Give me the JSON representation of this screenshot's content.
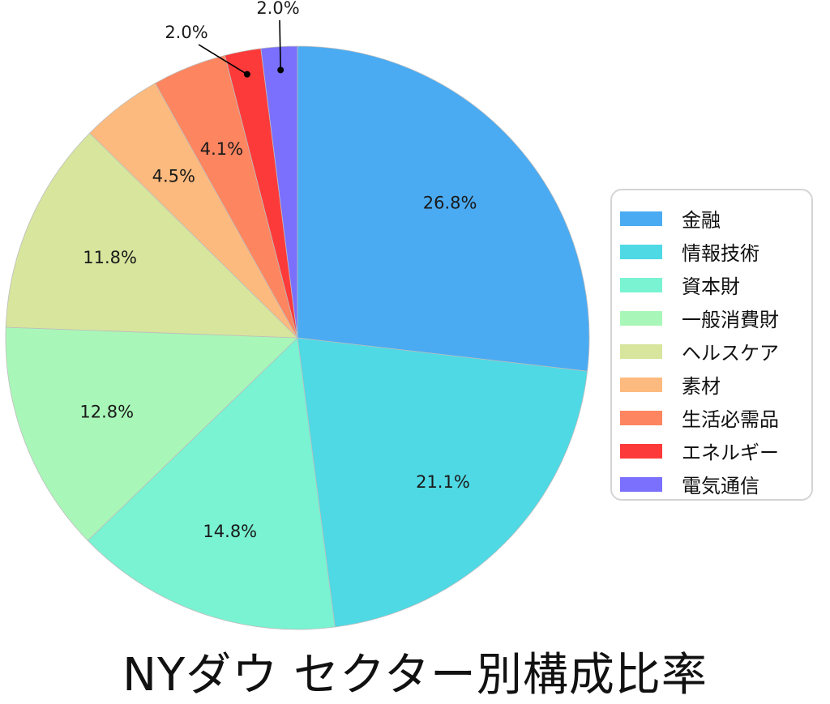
{
  "chart_data": {
    "type": "pie",
    "title": "NYダウ セクター別構成比率",
    "start_angle_deg": 90,
    "direction": "clockwise",
    "categories": [
      "金融",
      "情報技術",
      "資本財",
      "一般消費財",
      "ヘルスケア",
      "素材",
      "生活必需品",
      "エネルギー",
      "電気通信"
    ],
    "values": [
      26.8,
      21.1,
      14.8,
      12.8,
      11.8,
      4.5,
      4.1,
      2.0,
      2.0
    ],
    "labels": [
      "26.8%",
      "21.1%",
      "14.8%",
      "12.8%",
      "11.8%",
      "4.5%",
      "4.1%",
      "2.0%",
      "2.0%"
    ],
    "colors": [
      "#4aabf2",
      "#4fd9e4",
      "#79f3d2",
      "#a9f7b8",
      "#d7e59d",
      "#fdba7e",
      "#fd8560",
      "#fd3a3a",
      "#7a70fd"
    ],
    "legend_position": "right",
    "callouts": [
      {
        "index": 7,
        "label": "2.0%",
        "text_pos": [
          230,
          47
        ]
      },
      {
        "index": 8,
        "label": "2.0%",
        "text_pos": [
          343,
          17
        ]
      }
    ]
  },
  "legend": {
    "items": [
      {
        "label": "金融",
        "color": "#4aabf2"
      },
      {
        "label": "情報技術",
        "color": "#4fd9e4"
      },
      {
        "label": "資本財",
        "color": "#79f3d2"
      },
      {
        "label": "一般消費財",
        "color": "#a9f7b8"
      },
      {
        "label": "ヘルスケア",
        "color": "#d7e59d"
      },
      {
        "label": "素材",
        "color": "#fdba7e"
      },
      {
        "label": "生活必需品",
        "color": "#fd8560"
      },
      {
        "label": "エネルギー",
        "color": "#fd3a3a"
      },
      {
        "label": "電気通信",
        "color": "#7a70fd"
      }
    ]
  },
  "title": "NYダウ セクター別構成比率"
}
